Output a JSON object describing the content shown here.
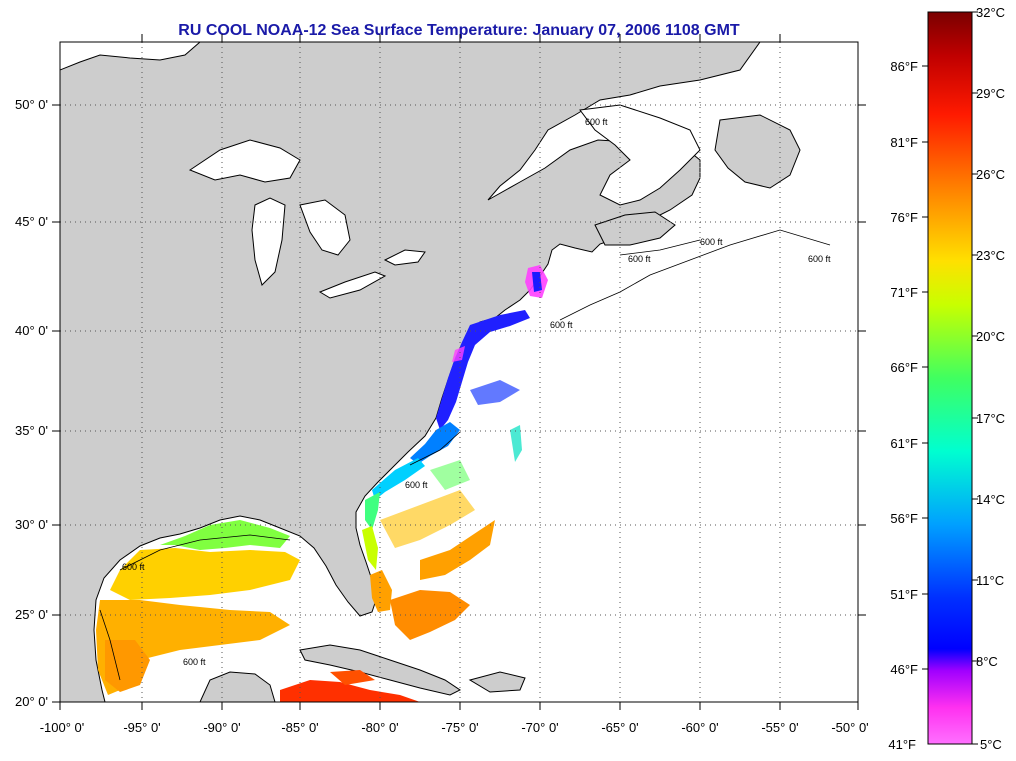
{
  "title": "RU COOL  NOAA-12  Sea Surface Temperature:  January 07, 2006 1108 GMT",
  "map": {
    "lon_range": [
      -100,
      -50
    ],
    "lat_range": [
      20,
      52.5
    ],
    "lon_ticks": [
      "-100° 0'",
      "-95° 0'",
      "-90° 0'",
      "-85° 0'",
      "-80° 0'",
      "-75° 0'",
      "-70° 0'",
      "-65° 0'",
      "-60° 0'",
      "-55° 0'",
      "-50° 0'"
    ],
    "lat_ticks": [
      "20° 0'",
      "25° 0'",
      "30° 0'",
      "35° 0'",
      "40° 0'",
      "45° 0'",
      "50° 0'"
    ],
    "contour_label": "600 ft",
    "land_color": "#cfcfcf",
    "ocean_color": "#ffffff",
    "grid": "dotted"
  },
  "colorbar": {
    "celsius_labels": [
      "32°C",
      "29°C",
      "26°C",
      "23°C",
      "20°C",
      "17°C",
      "14°C",
      "11°C",
      "8°C",
      "5°C"
    ],
    "fahrenheit_labels": [
      "86°F",
      "81°F",
      "76°F",
      "71°F",
      "66°F",
      "61°F",
      "56°F",
      "51°F",
      "46°F",
      "41°F"
    ],
    "gradient": [
      "#7a0000",
      "#d40000",
      "#ff2a00",
      "#ff7a00",
      "#ffd000",
      "#d8ff00",
      "#60ff40",
      "#00ffc0",
      "#00b0ff",
      "#0040ff",
      "#0000ff",
      "#9000ff",
      "#ff40ff",
      "#ff80ff"
    ]
  }
}
